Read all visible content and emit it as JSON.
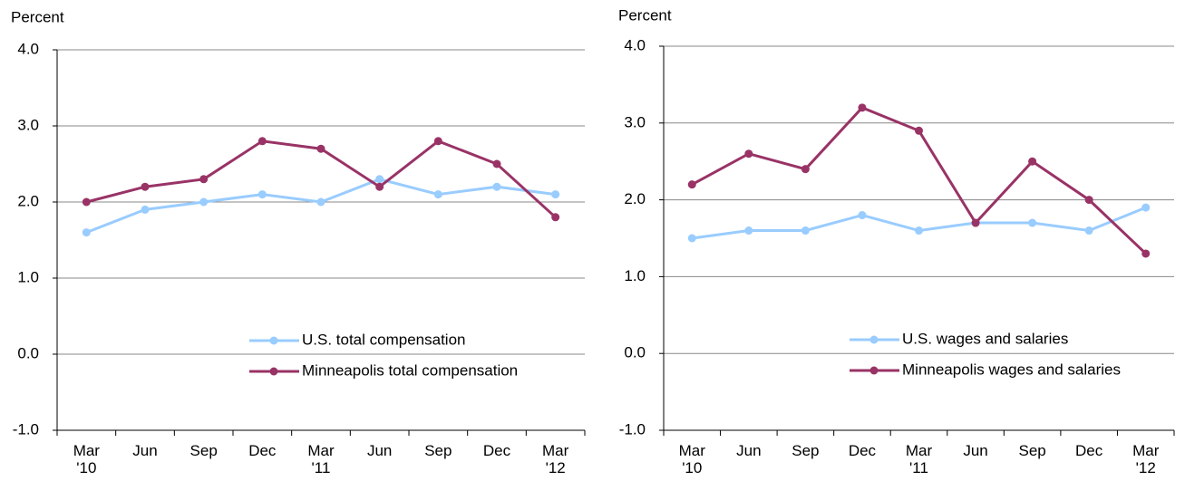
{
  "chart_data": [
    {
      "type": "line",
      "y_label": "Percent",
      "categories": [
        "Mar '10",
        "Jun",
        "Sep",
        "Dec",
        "Mar '11",
        "Jun",
        "Sep",
        "Dec",
        "Mar '12"
      ],
      "series": [
        {
          "name": "U.S. total compensation",
          "color": "#99ccff",
          "values": [
            1.6,
            1.9,
            2.0,
            2.1,
            2.0,
            2.3,
            2.1,
            2.2,
            2.1
          ]
        },
        {
          "name": "Minneapolis total compensation",
          "color": "#993366",
          "values": [
            2.0,
            2.2,
            2.3,
            2.8,
            2.7,
            2.2,
            2.8,
            2.5,
            1.8
          ]
        }
      ],
      "ylim": [
        -1,
        4
      ],
      "yticks": [
        {
          "value": -1,
          "label": "-1.0"
        },
        {
          "value": 0,
          "label": "0.0"
        },
        {
          "value": 1,
          "label": "1.0"
        },
        {
          "value": 2,
          "label": "2.0"
        },
        {
          "value": 3,
          "label": "3.0"
        },
        {
          "value": 4,
          "label": "4.0"
        }
      ],
      "grid": true
    },
    {
      "type": "line",
      "y_label": "Percent",
      "categories": [
        "Mar '10",
        "Jun",
        "Sep",
        "Dec",
        "Mar '11",
        "Jun",
        "Sep",
        "Dec",
        "Mar '12"
      ],
      "series": [
        {
          "name": "U.S. wages and salaries",
          "color": "#99ccff",
          "values": [
            1.5,
            1.6,
            1.6,
            1.8,
            1.6,
            1.7,
            1.7,
            1.6,
            1.9
          ]
        },
        {
          "name": "Minneapolis wages and salaries",
          "color": "#993366",
          "values": [
            2.2,
            2.6,
            2.4,
            3.2,
            2.9,
            1.7,
            2.5,
            2.0,
            1.3
          ]
        }
      ],
      "ylim": [
        -1,
        4
      ],
      "yticks": [
        {
          "value": -1,
          "label": "-1.0"
        },
        {
          "value": 0,
          "label": "0.0"
        },
        {
          "value": 1,
          "label": "1.0"
        },
        {
          "value": 2,
          "label": "2.0"
        },
        {
          "value": 3,
          "label": "3.0"
        },
        {
          "value": 4,
          "label": "4.0"
        }
      ],
      "grid": true
    }
  ]
}
